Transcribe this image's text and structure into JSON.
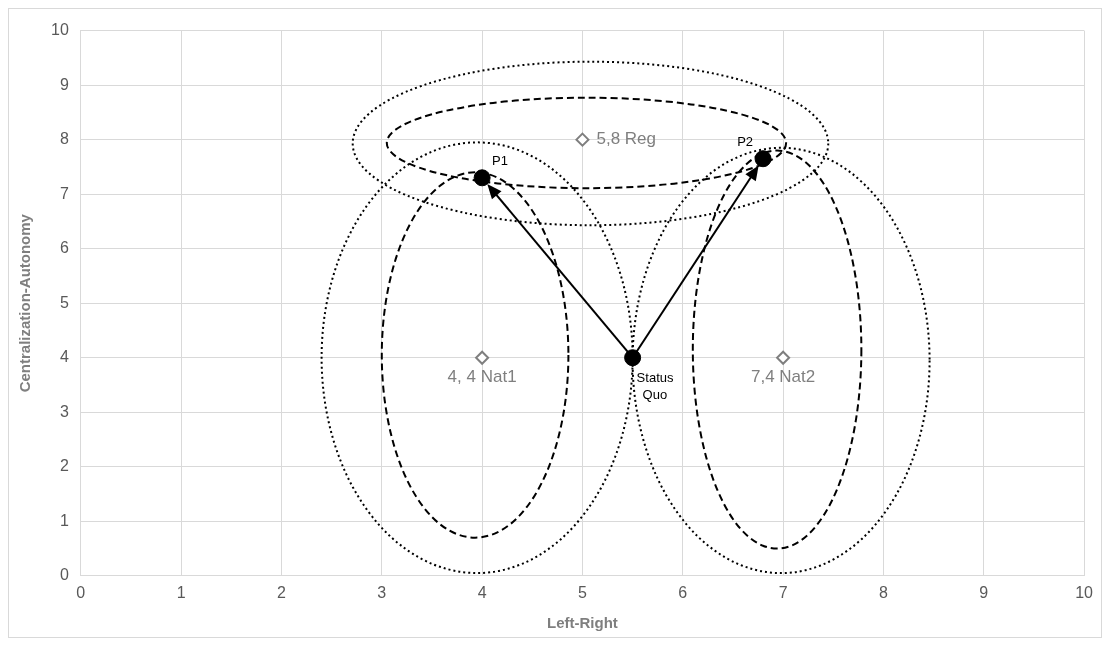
{
  "chart_data": {
    "type": "scatter",
    "xlabel": "Left-Right",
    "ylabel": "Centralization-Autonomy",
    "xlim": [
      0,
      10
    ],
    "xticks": [
      0,
      1,
      2,
      3,
      4,
      5,
      6,
      7,
      8,
      9,
      10
    ],
    "ylim": [
      0,
      10
    ],
    "yticks": [
      0,
      1,
      2,
      3,
      4,
      5,
      6,
      7,
      8,
      9,
      10
    ],
    "grid": true,
    "legend": false,
    "series": [
      {
        "color": "#7f7f7f",
        "marker": "diamond",
        "x": [
          4,
          5,
          7
        ],
        "values": [
          4,
          8,
          4
        ]
      },
      {
        "color": "#000000",
        "marker": "circle",
        "x": [
          5.5,
          4,
          6.8
        ],
        "values": [
          4,
          7.3,
          7.65
        ]
      }
    ],
    "annotations": [
      {
        "text": "4, 4 Nat1",
        "x": 4,
        "y": 4
      },
      {
        "text": "5,8 Reg",
        "x": 5,
        "y": 8
      },
      {
        "text": "7,4 Nat2",
        "x": 7,
        "y": 4
      },
      {
        "text": "Status Quo",
        "x": 5.5,
        "y": 4
      },
      {
        "text": "P1",
        "x": 4,
        "y": 7.3
      },
      {
        "text": "P2",
        "x": 6.8,
        "y": 7.65
      }
    ]
  }
}
